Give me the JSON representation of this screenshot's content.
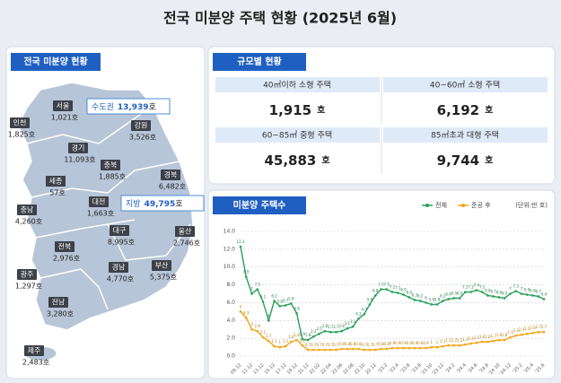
{
  "title": "전국 미분양 주택 현황  (2025년 6월)",
  "map": {
    "heading": "전국 미분양 현황",
    "regions": [
      {
        "name": "서울",
        "value": "1,021호"
      },
      {
        "name": "인천",
        "value": "1,825호"
      },
      {
        "name": "경기",
        "value": "11,093호"
      },
      {
        "name": "강원",
        "value": "3,526호"
      },
      {
        "name": "충북",
        "value": "1,885호"
      },
      {
        "name": "세종",
        "value": "57호"
      },
      {
        "name": "대전",
        "value": "1,663호"
      },
      {
        "name": "경북",
        "value": "6,482호"
      },
      {
        "name": "충남",
        "value": "4,260호"
      },
      {
        "name": "전북",
        "value": "2,976호"
      },
      {
        "name": "대구",
        "value": "8,995호"
      },
      {
        "name": "울산",
        "value": "2,746호"
      },
      {
        "name": "광주",
        "value": "1,297호"
      },
      {
        "name": "경남",
        "value": "4,770호"
      },
      {
        "name": "부산",
        "value": "5,375호"
      },
      {
        "name": "전남",
        "value": "3,280호"
      },
      {
        "name": "제주",
        "value": "2,483호"
      }
    ],
    "callouts": [
      {
        "label": "수도권",
        "value": "13,939",
        "unit": "호"
      },
      {
        "label": "지방",
        "value": "49,795",
        "unit": "호"
      }
    ]
  },
  "size_table": {
    "heading": "규모별 현황",
    "cells": [
      {
        "label": "40㎡이하 소형 주택",
        "value": "1,915",
        "unit": "호"
      },
      {
        "label": "40~60㎡ 소형 주택",
        "value": "6,192",
        "unit": "호"
      },
      {
        "label": "60~85㎡ 중형 주택",
        "value": "45,883",
        "unit": "호"
      },
      {
        "label": "85㎡초과 대형 주택",
        "value": "9,744",
        "unit": "호"
      }
    ]
  },
  "chart_data": {
    "type": "line",
    "title": "미분양 주택수",
    "unit_note": "(단위:만 호)",
    "categories": [
      "09.12",
      null,
      "11.12",
      null,
      "13.12",
      null,
      "15.12",
      null,
      "17.12",
      null,
      "19.12",
      null,
      "21.12",
      null,
      "22.02",
      null,
      "22.04",
      null,
      "22.06",
      null,
      "22.08",
      null,
      "22.10",
      null,
      "22.12",
      null,
      "'23.2",
      null,
      "'23.4",
      null,
      "'23.6",
      null,
      "'23.8",
      null,
      "'23.10",
      null,
      "'23.12",
      null,
      "'24.2",
      null,
      "'24.4",
      null,
      "'24.6",
      null,
      "'24.8",
      null,
      "'24.10",
      null,
      "'24.12",
      null,
      "'25.2",
      null,
      "'25.4",
      null,
      "'25.6"
    ],
    "series": [
      {
        "name": "전체",
        "color": "#27a05a",
        "values": [
          12.3,
          8.9,
          7.0,
          7.5,
          6.1,
          4.0,
          6.2,
          5.6,
          5.7,
          5.9,
          4.8,
          1.9,
          1.8,
          2.2,
          2.5,
          2.8,
          2.7,
          2.7,
          2.8,
          3.1,
          3.3,
          4.2,
          4.7,
          5.8,
          6.8,
          7.5,
          7.5,
          7.2,
          7.1,
          6.9,
          6.6,
          6.3,
          6.2,
          6.0,
          5.8,
          5.8,
          6.2,
          6.4,
          6.5,
          6.5,
          7.2,
          7.2,
          7.4,
          7.2,
          6.8,
          6.7,
          6.6,
          6.5,
          7.0,
          7.3,
          7.0,
          6.9,
          6.8,
          6.7,
          6.4
        ]
      },
      {
        "name": "준공 후",
        "color": "#f2a516",
        "values": [
          5.0,
          4.3,
          3.0,
          2.8,
          2.1,
          1.7,
          1.1,
          1.0,
          1.1,
          1.6,
          1.8,
          1.2,
          0.7,
          0.7,
          0.7,
          0.7,
          0.7,
          0.7,
          0.8,
          0.8,
          0.8,
          0.8,
          0.7,
          0.7,
          0.7,
          0.8,
          0.8,
          0.9,
          0.9,
          0.9,
          0.9,
          0.9,
          0.9,
          0.9,
          1.0,
          1.0,
          1.1,
          1.2,
          1.2,
          1.2,
          1.3,
          1.4,
          1.5,
          1.6,
          1.6,
          1.7,
          1.8,
          1.8,
          2.1,
          2.3,
          2.4,
          2.5,
          2.6,
          2.7,
          2.7
        ]
      }
    ],
    "ylim": [
      0,
      14
    ],
    "yticks": [
      {
        "value": 0,
        "label": "0.0"
      },
      {
        "value": 2,
        "label": "2.0"
      },
      {
        "value": 4,
        "label": "4.0"
      },
      {
        "value": 6,
        "label": "6.0"
      },
      {
        "value": 8,
        "label": "8.0"
      },
      {
        "value": 10,
        "label": "10.0"
      },
      {
        "value": 12,
        "label": "12.0"
      },
      {
        "value": 14,
        "label": "14.0"
      }
    ],
    "grid": true,
    "data_labels": true
  }
}
